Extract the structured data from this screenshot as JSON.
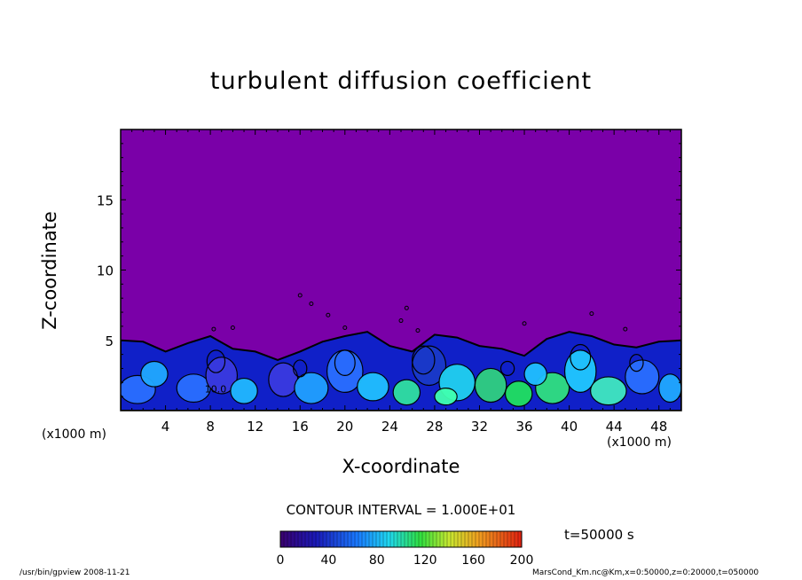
{
  "chart_data": {
    "type": "heatmap",
    "title": "turbulent diffusion coefficient",
    "xlabel": "X-coordinate",
    "ylabel": "Z-coordinate",
    "x_unit": "(x1000 m)",
    "y_unit": "(x1000 m)",
    "xlim": [
      0,
      50
    ],
    "ylim": [
      0,
      20
    ],
    "x_ticks": [
      4,
      8,
      12,
      16,
      20,
      24,
      28,
      32,
      36,
      40,
      44,
      48
    ],
    "y_ticks": [
      5,
      10,
      15
    ],
    "contour_interval_text": "CONTOUR INTERVAL = 1.000E+01",
    "contour_interval": 10,
    "colorbar": {
      "min": 0,
      "max": 200,
      "ticks": [
        0,
        40,
        80,
        120,
        160,
        200
      ]
    },
    "time_label": "t=50000 s",
    "contour_label": "10.0",
    "boundary_layer_top_profile": [
      {
        "x": 0,
        "z": 5.0
      },
      {
        "x": 2,
        "z": 4.9
      },
      {
        "x": 4,
        "z": 4.2
      },
      {
        "x": 6,
        "z": 4.8
      },
      {
        "x": 8,
        "z": 5.3
      },
      {
        "x": 10,
        "z": 4.4
      },
      {
        "x": 12,
        "z": 4.2
      },
      {
        "x": 14,
        "z": 3.6
      },
      {
        "x": 16,
        "z": 4.2
      },
      {
        "x": 18,
        "z": 4.9
      },
      {
        "x": 20,
        "z": 5.3
      },
      {
        "x": 22,
        "z": 5.6
      },
      {
        "x": 24,
        "z": 4.6
      },
      {
        "x": 26,
        "z": 4.2
      },
      {
        "x": 28,
        "z": 5.4
      },
      {
        "x": 30,
        "z": 5.2
      },
      {
        "x": 32,
        "z": 4.6
      },
      {
        "x": 34,
        "z": 4.4
      },
      {
        "x": 36,
        "z": 3.9
      },
      {
        "x": 38,
        "z": 5.1
      },
      {
        "x": 40,
        "z": 5.6
      },
      {
        "x": 42,
        "z": 5.3
      },
      {
        "x": 44,
        "z": 4.7
      },
      {
        "x": 46,
        "z": 4.5
      },
      {
        "x": 48,
        "z": 4.9
      },
      {
        "x": 50,
        "z": 5.0
      }
    ],
    "background_value": 0
  },
  "footer": {
    "left": "/usr/bin/gpview   2008-11-21",
    "right": "MarsCond_Km.nc@Km,x=0:50000,z=0:20000,t=050000"
  },
  "colors": {
    "background_field": "#7a00a8",
    "low": "#1020c8",
    "mid": "#20c0ff",
    "high": "#30e060"
  }
}
